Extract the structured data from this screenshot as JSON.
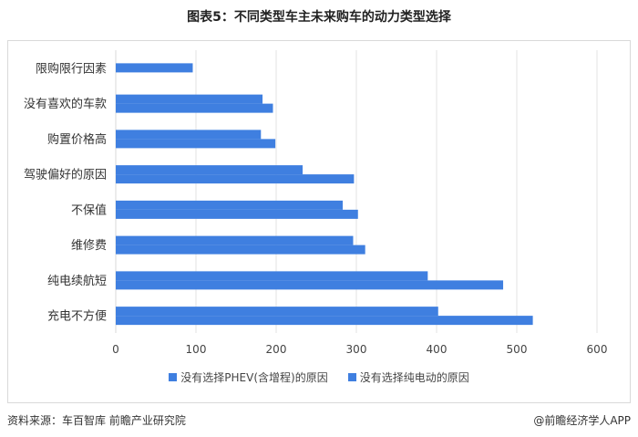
{
  "title": "图表5：不同类型车主未来购车的动力类型选择",
  "colors": {
    "series": "#3f7fe0",
    "grid": "#e3e3e3",
    "axis": "#d9d9d9"
  },
  "chart_data": {
    "type": "bar",
    "orientation": "horizontal",
    "categories": [
      "限购限行因素",
      "没有喜欢的车款",
      "购置价格高",
      "驾驶偏好的原因",
      "不保值",
      "维修费",
      "纯电续航短",
      "充电不方便"
    ],
    "series": [
      {
        "name": "没有选择PHEV(含增程)的原因",
        "values": [
          0,
          183,
          181,
          233,
          283,
          296,
          389,
          402
        ]
      },
      {
        "name": "没有选择纯电动的原因",
        "values": [
          96,
          196,
          199,
          297,
          302,
          311,
          483,
          520
        ]
      }
    ],
    "xlim": [
      0,
      600
    ],
    "xticks": [
      "0",
      "100",
      "200",
      "300",
      "400",
      "500",
      "600"
    ],
    "grid": true,
    "legend_position": "bottom"
  },
  "footer": {
    "source": "资料来源：车百智库 前瞻产业研究院",
    "brand": "@前瞻经济学人APP"
  }
}
